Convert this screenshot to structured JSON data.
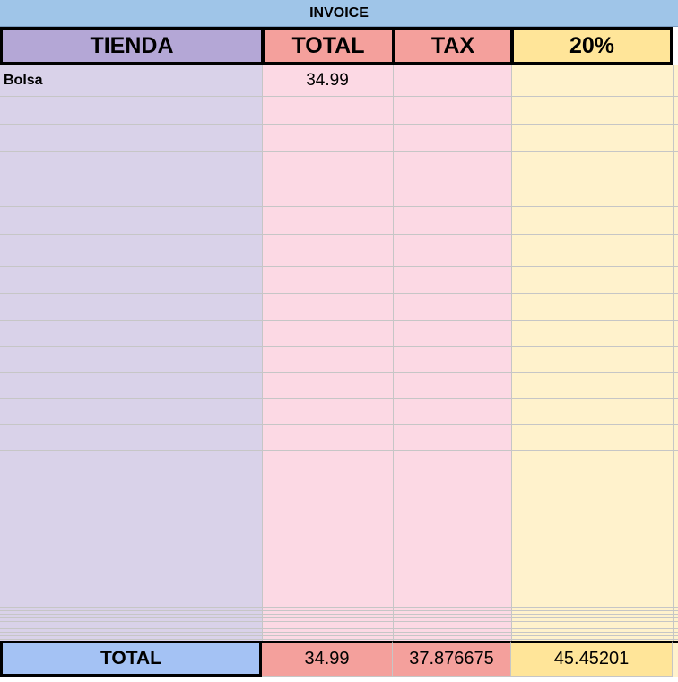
{
  "title": "INVOICE",
  "table": {
    "header": [
      "TIENDA",
      "TOTAL",
      "TAX",
      "20%"
    ],
    "rows": [
      [
        "Bolsa",
        34.99
      ]
    ],
    "footer": [
      "TOTAL",
      34.99,
      37.876675,
      45.45201
    ]
  }
}
